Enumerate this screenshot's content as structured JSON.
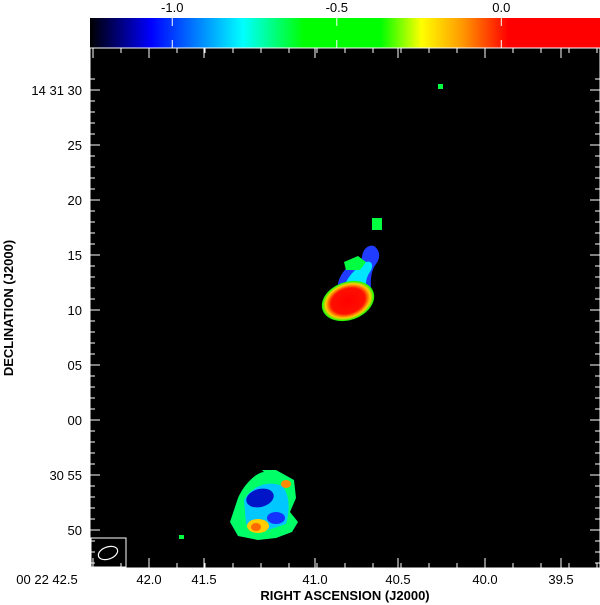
{
  "colorbar": {
    "tick_labels": [
      "-1.0",
      "-0.5",
      "0.0"
    ],
    "tick_values": [
      -1.0,
      -0.5,
      0.0
    ],
    "range": [
      -1.25,
      0.3
    ],
    "colors": [
      "#000000",
      "#0000ff",
      "#00ffff",
      "#00ff00",
      "#ffff00",
      "#ff9900",
      "#ff0000"
    ]
  },
  "axes": {
    "x_title": "RIGHT ASCENSION (J2000)",
    "y_title": "DECLINATION (J2000)",
    "x_ticks": [
      "00 22 42.5",
      "42.0",
      "41.5",
      "41.0",
      "40.5",
      "40.0",
      "39.5"
    ],
    "y_ticks": [
      "14 31 30",
      "25",
      "20",
      "15",
      "10",
      "05",
      "00",
      "30 55",
      "50"
    ]
  },
  "colors": {
    "background": "#000000",
    "frame": "#ffffff",
    "beam": "#ffffff"
  }
}
